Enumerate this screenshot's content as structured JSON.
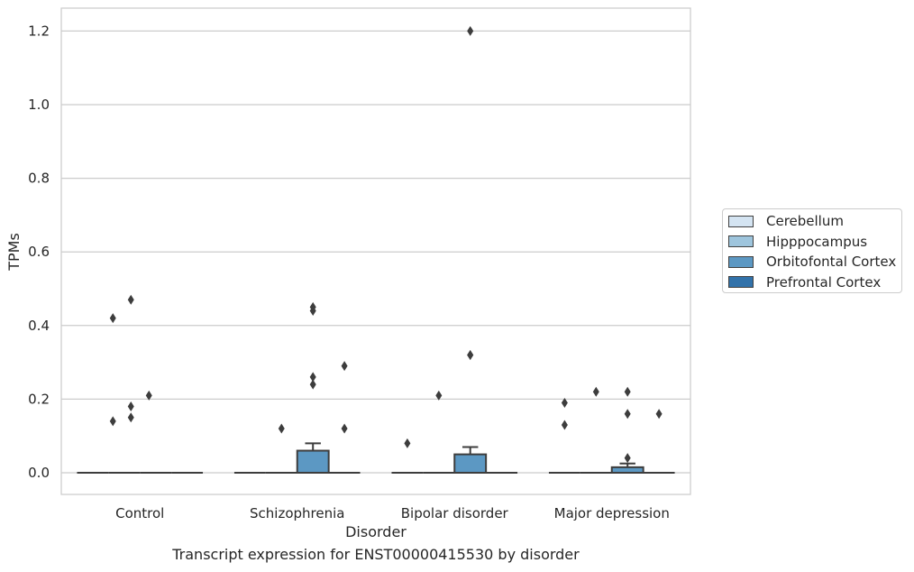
{
  "chart_data": {
    "type": "box",
    "xlabel": "Disorder",
    "ylabel": "TPMs",
    "caption": "Transcript expression for ENST00000415530 by disorder",
    "ylim": [
      -0.06,
      1.26
    ],
    "yticks": [
      "0.0",
      "0.2",
      "0.4",
      "0.6",
      "0.8",
      "1.0",
      "1.2"
    ],
    "grid": "horizontal",
    "legend_position": "right",
    "categories": [
      "Control",
      "Schizophrenia",
      "Bipolar disorder",
      "Major depression"
    ],
    "series": [
      {
        "name": "Cerebellum",
        "color": "#d4e4f2"
      },
      {
        "name": "Hipppocampus",
        "color": "#9ec5dd"
      },
      {
        "name": "Orbitofontal Cortex",
        "color": "#5c98c3"
      },
      {
        "name": "Prefrontal Cortex",
        "color": "#3272aa"
      }
    ],
    "boxes": [
      {
        "category": "Control",
        "series": "Cerebellum",
        "q1": 0,
        "median": 0,
        "q3": 0,
        "whisker_low": 0,
        "whisker_high": 0,
        "outliers": []
      },
      {
        "category": "Control",
        "series": "Hipppocampus",
        "q1": 0,
        "median": 0,
        "q3": 0,
        "whisker_low": 0,
        "whisker_high": 0,
        "outliers": []
      },
      {
        "category": "Control",
        "series": "Orbitofontal Cortex",
        "q1": 0,
        "median": 0,
        "q3": 0,
        "whisker_low": 0,
        "whisker_high": 0,
        "outliers": [
          0.14,
          0.18,
          0.15,
          0.42,
          0.47,
          0.21
        ]
      },
      {
        "category": "Control",
        "series": "Prefrontal Cortex",
        "q1": 0,
        "median": 0,
        "q3": 0,
        "whisker_low": 0,
        "whisker_high": 0,
        "outliers": []
      },
      {
        "category": "Schizophrenia",
        "series": "Cerebellum",
        "q1": 0,
        "median": 0,
        "q3": 0,
        "whisker_low": 0,
        "whisker_high": 0,
        "outliers": []
      },
      {
        "category": "Schizophrenia",
        "series": "Hipppocampus",
        "q1": 0,
        "median": 0,
        "q3": 0,
        "whisker_low": 0,
        "whisker_high": 0,
        "outliers": [
          0.12
        ]
      },
      {
        "category": "Schizophrenia",
        "series": "Orbitofontal Cortex",
        "q1": 0,
        "median": 0,
        "q3": 0.06,
        "whisker_low": 0,
        "whisker_high": 0.08,
        "outliers": [
          0.26,
          0.24,
          0.44,
          0.45
        ]
      },
      {
        "category": "Schizophrenia",
        "series": "Prefrontal Cortex",
        "q1": 0,
        "median": 0,
        "q3": 0,
        "whisker_low": 0,
        "whisker_high": 0,
        "outliers": [
          0.29,
          0.12
        ]
      },
      {
        "category": "Bipolar disorder",
        "series": "Cerebellum",
        "q1": 0,
        "median": 0,
        "q3": 0,
        "whisker_low": 0,
        "whisker_high": 0,
        "outliers": [
          0.08
        ]
      },
      {
        "category": "Bipolar disorder",
        "series": "Hipppocampus",
        "q1": 0,
        "median": 0,
        "q3": 0,
        "whisker_low": 0,
        "whisker_high": 0,
        "outliers": [
          0.21
        ]
      },
      {
        "category": "Bipolar disorder",
        "series": "Orbitofontal Cortex",
        "q1": 0,
        "median": 0,
        "q3": 0.05,
        "whisker_low": 0,
        "whisker_high": 0.07,
        "outliers": [
          0.32,
          0.32,
          1.2
        ]
      },
      {
        "category": "Bipolar disorder",
        "series": "Prefrontal Cortex",
        "q1": 0,
        "median": 0,
        "q3": 0,
        "whisker_low": 0,
        "whisker_high": 0,
        "outliers": []
      },
      {
        "category": "Major depression",
        "series": "Cerebellum",
        "q1": 0,
        "median": 0,
        "q3": 0,
        "whisker_low": 0,
        "whisker_high": 0,
        "outliers": [
          0.13,
          0.19
        ]
      },
      {
        "category": "Major depression",
        "series": "Hipppocampus",
        "q1": 0,
        "median": 0,
        "q3": 0,
        "whisker_low": 0,
        "whisker_high": 0,
        "outliers": [
          0.22
        ]
      },
      {
        "category": "Major depression",
        "series": "Orbitofontal Cortex",
        "q1": 0,
        "median": 0,
        "q3": 0.015,
        "whisker_low": 0,
        "whisker_high": 0.025,
        "outliers": [
          0.04,
          0.22,
          0.16
        ]
      },
      {
        "category": "Major depression",
        "series": "Prefrontal Cortex",
        "q1": 0,
        "median": 0,
        "q3": 0,
        "whisker_low": 0,
        "whisker_high": 0,
        "outliers": [
          0.16
        ]
      }
    ],
    "outlier_offsets": {
      "Control|Orbitofontal Cortex": [
        -30,
        -10,
        -10,
        -30,
        -10,
        10
      ]
    }
  }
}
